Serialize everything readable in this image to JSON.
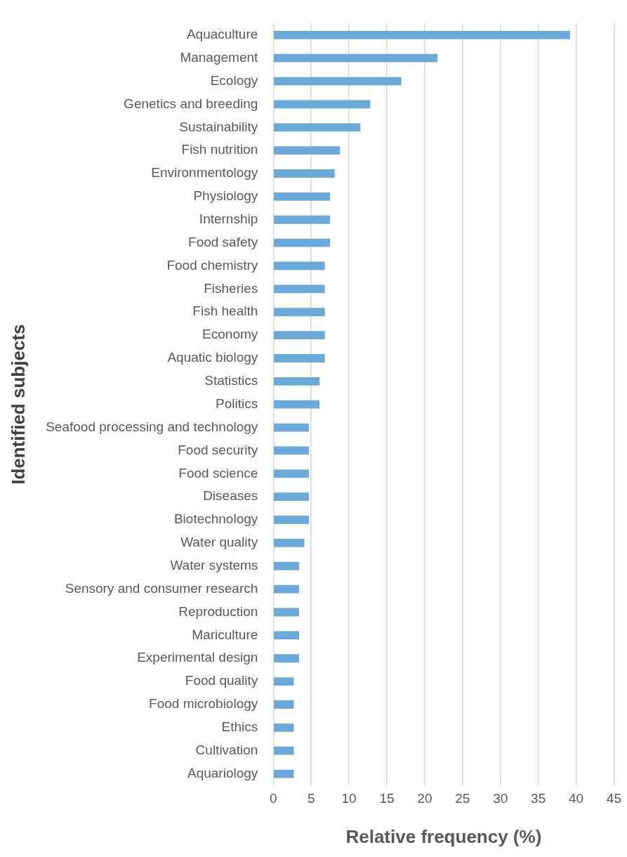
{
  "chart_data": {
    "type": "bar",
    "orientation": "horizontal",
    "xlabel": "Relative frequency (%)",
    "ylabel": "Identified subjects",
    "categories": [
      "Aquaculture",
      "Management",
      "Ecology",
      "Genetics and breeding",
      "Sustainability",
      "Fish nutrition",
      "Environmentology",
      "Physiology",
      "Internship",
      "Food safety",
      "Food chemistry",
      "Fisheries",
      "Fish health",
      "Economy",
      "Aquatic biology",
      "Statistics",
      "Politics",
      "Seafood processing and technology",
      "Food security",
      "Food science",
      "Diseases",
      "Biotechnology",
      "Water quality",
      "Water systems",
      "Sensory and consumer research",
      "Reproduction",
      "Mariculture",
      "Experimental design",
      "Food quality",
      "Food microbiology",
      "Ethics",
      "Cultivation",
      "Aquariology"
    ],
    "values": [
      39.2,
      21.7,
      16.9,
      12.8,
      11.5,
      8.8,
      8.1,
      7.5,
      7.5,
      7.5,
      6.8,
      6.8,
      6.8,
      6.8,
      6.8,
      6.1,
      6.1,
      4.7,
      4.7,
      4.7,
      4.7,
      4.7,
      4.1,
      3.4,
      3.4,
      3.4,
      3.4,
      3.4,
      2.7,
      2.7,
      2.7,
      2.7,
      2.7
    ],
    "color": "#6aaadb",
    "xlim": [
      0,
      45
    ],
    "xticks": [
      0,
      5,
      10,
      15,
      20,
      25,
      30,
      35,
      40,
      45
    ],
    "grid": "x"
  }
}
